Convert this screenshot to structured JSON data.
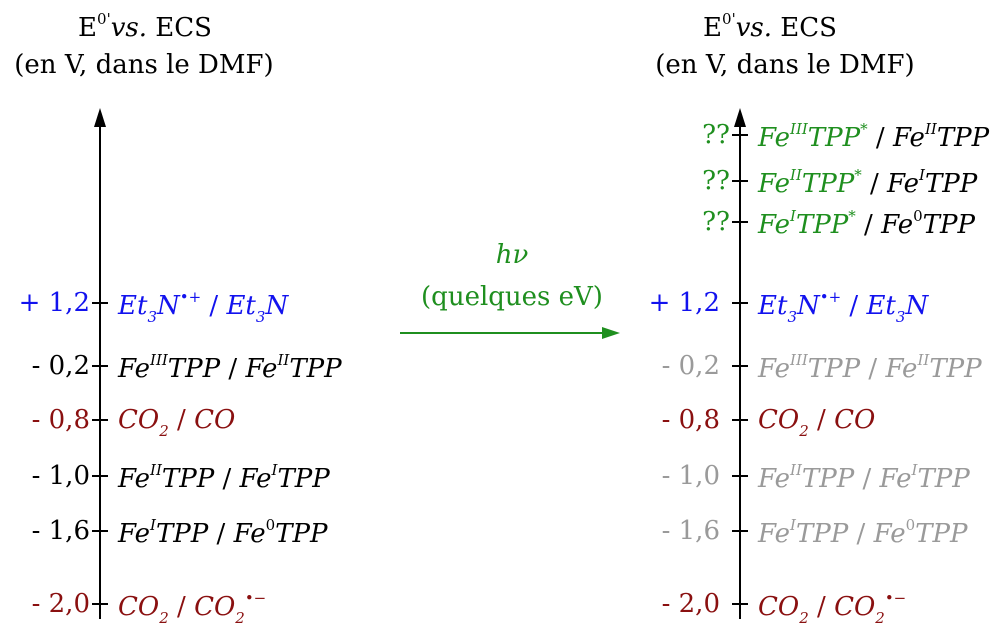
{
  "colors": {
    "black": "#000000",
    "blue": "#1212ee",
    "red": "#8a1010",
    "green": "#1f8f1f",
    "grey": "#9a9a9a"
  },
  "left": {
    "header_line1": "E⁰' vs. ECS",
    "header_line2": "(en V, dans le DMF)",
    "rows": [
      {
        "value": "+ 1,2",
        "label": "Et3N•+ / Et3N",
        "color": "blue"
      },
      {
        "value": "- 0,2",
        "label": "FeIIITPP / FeIITPP",
        "color": "black"
      },
      {
        "value": "- 0,8",
        "label": "CO2 / CO",
        "color": "red"
      },
      {
        "value": "- 1,0",
        "label": "FeIITPP / FeITPP",
        "color": "black"
      },
      {
        "value": "- 1,6",
        "label": "FeITPP / Fe0TPP",
        "color": "black"
      },
      {
        "value": "- 2,0",
        "label": "CO2 / CO2•−",
        "color": "red"
      }
    ]
  },
  "arrow": {
    "label_line1": "hν",
    "label_line2": "(quelques eV)"
  },
  "right": {
    "header_line1": "E⁰' vs. ECS",
    "header_line2": "(en V, dans le DMF)",
    "rows": [
      {
        "value": "??",
        "label": "FeIIITPP* / FeIITPP",
        "color": "green"
      },
      {
        "value": "??",
        "label": "FeIITPP* / FeITPP",
        "color": "green"
      },
      {
        "value": "??",
        "label": "FeITPP* / Fe0TPP",
        "color": "green"
      },
      {
        "value": "+ 1,2",
        "label": "Et3N•+ / Et3N",
        "color": "blue"
      },
      {
        "value": "- 0,2",
        "label": "FeIIITPP / FeIITPP",
        "color": "grey"
      },
      {
        "value": "- 0,8",
        "label": "CO2 / CO",
        "color": "red"
      },
      {
        "value": "- 1,0",
        "label": "FeIITPP / FeITPP",
        "color": "grey"
      },
      {
        "value": "- 1,6",
        "label": "FeITPP / Fe0TPP",
        "color": "grey"
      },
      {
        "value": "- 2,0",
        "label": "CO2 / CO2•−",
        "color": "red"
      }
    ]
  }
}
